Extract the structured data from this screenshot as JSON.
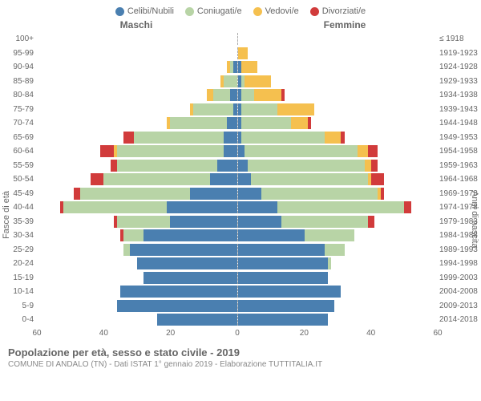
{
  "chart": {
    "type": "population-pyramid",
    "legend": [
      {
        "label": "Celibi/Nubili",
        "color": "#4a7fb0"
      },
      {
        "label": "Coniugati/e",
        "color": "#b8d4a6"
      },
      {
        "label": "Vedovi/e",
        "color": "#f5c04f"
      },
      {
        "label": "Divorziati/e",
        "color": "#d13b3b"
      }
    ],
    "header_left": "Maschi",
    "header_right": "Femmine",
    "y_left_title": "Fasce di età",
    "y_right_title": "Anni di nascita",
    "x_max": 60,
    "x_ticks": [
      60,
      40,
      20,
      0,
      20,
      40,
      60
    ],
    "colors": {
      "single": "#4a7fb0",
      "married": "#b8d4a6",
      "widowed": "#f5c04f",
      "divorced": "#d13b3b",
      "grid": "#e8e8e8",
      "text": "#666666"
    },
    "age_bands": [
      {
        "age": "100+",
        "year": "≤ 1918",
        "m": {
          "s": 0,
          "m": 0,
          "w": 0,
          "d": 0
        },
        "f": {
          "s": 0,
          "m": 0,
          "w": 0,
          "d": 0
        }
      },
      {
        "age": "95-99",
        "year": "1919-1923",
        "m": {
          "s": 0,
          "m": 0,
          "w": 0,
          "d": 0
        },
        "f": {
          "s": 0,
          "m": 0,
          "w": 3,
          "d": 0
        }
      },
      {
        "age": "90-94",
        "year": "1924-1928",
        "m": {
          "s": 1,
          "m": 1,
          "w": 1,
          "d": 0
        },
        "f": {
          "s": 1,
          "m": 0,
          "w": 5,
          "d": 0
        }
      },
      {
        "age": "85-89",
        "year": "1929-1933",
        "m": {
          "s": 0,
          "m": 4,
          "w": 1,
          "d": 0
        },
        "f": {
          "s": 1,
          "m": 1,
          "w": 8,
          "d": 0
        }
      },
      {
        "age": "80-84",
        "year": "1934-1938",
        "m": {
          "s": 2,
          "m": 5,
          "w": 2,
          "d": 0
        },
        "f": {
          "s": 1,
          "m": 4,
          "w": 8,
          "d": 1
        }
      },
      {
        "age": "75-79",
        "year": "1939-1943",
        "m": {
          "s": 1,
          "m": 12,
          "w": 1,
          "d": 0
        },
        "f": {
          "s": 1,
          "m": 11,
          "w": 11,
          "d": 0
        }
      },
      {
        "age": "70-74",
        "year": "1944-1948",
        "m": {
          "s": 3,
          "m": 17,
          "w": 1,
          "d": 0
        },
        "f": {
          "s": 1,
          "m": 15,
          "w": 5,
          "d": 1
        }
      },
      {
        "age": "65-69",
        "year": "1949-1953",
        "m": {
          "s": 4,
          "m": 27,
          "w": 0,
          "d": 3
        },
        "f": {
          "s": 1,
          "m": 25,
          "w": 5,
          "d": 1
        }
      },
      {
        "age": "60-64",
        "year": "1954-1958",
        "m": {
          "s": 4,
          "m": 32,
          "w": 1,
          "d": 4
        },
        "f": {
          "s": 2,
          "m": 34,
          "w": 3,
          "d": 3
        }
      },
      {
        "age": "55-59",
        "year": "1959-1963",
        "m": {
          "s": 6,
          "m": 30,
          "w": 0,
          "d": 2
        },
        "f": {
          "s": 3,
          "m": 35,
          "w": 2,
          "d": 2
        }
      },
      {
        "age": "50-54",
        "year": "1964-1968",
        "m": {
          "s": 8,
          "m": 32,
          "w": 0,
          "d": 4
        },
        "f": {
          "s": 4,
          "m": 35,
          "w": 1,
          "d": 4
        }
      },
      {
        "age": "45-49",
        "year": "1969-1973",
        "m": {
          "s": 14,
          "m": 33,
          "w": 0,
          "d": 2
        },
        "f": {
          "s": 7,
          "m": 35,
          "w": 1,
          "d": 1
        }
      },
      {
        "age": "40-44",
        "year": "1974-1978",
        "m": {
          "s": 21,
          "m": 31,
          "w": 0,
          "d": 1
        },
        "f": {
          "s": 12,
          "m": 38,
          "w": 0,
          "d": 2
        }
      },
      {
        "age": "35-39",
        "year": "1979-1983",
        "m": {
          "s": 20,
          "m": 16,
          "w": 0,
          "d": 1
        },
        "f": {
          "s": 13,
          "m": 26,
          "w": 0,
          "d": 2
        }
      },
      {
        "age": "30-34",
        "year": "1984-1988",
        "m": {
          "s": 28,
          "m": 6,
          "w": 0,
          "d": 1
        },
        "f": {
          "s": 20,
          "m": 15,
          "w": 0,
          "d": 0
        }
      },
      {
        "age": "25-29",
        "year": "1989-1993",
        "m": {
          "s": 32,
          "m": 2,
          "w": 0,
          "d": 0
        },
        "f": {
          "s": 26,
          "m": 6,
          "w": 0,
          "d": 0
        }
      },
      {
        "age": "20-24",
        "year": "1994-1998",
        "m": {
          "s": 30,
          "m": 0,
          "w": 0,
          "d": 0
        },
        "f": {
          "s": 27,
          "m": 1,
          "w": 0,
          "d": 0
        }
      },
      {
        "age": "15-19",
        "year": "1999-2003",
        "m": {
          "s": 28,
          "m": 0,
          "w": 0,
          "d": 0
        },
        "f": {
          "s": 27,
          "m": 0,
          "w": 0,
          "d": 0
        }
      },
      {
        "age": "10-14",
        "year": "2004-2008",
        "m": {
          "s": 35,
          "m": 0,
          "w": 0,
          "d": 0
        },
        "f": {
          "s": 31,
          "m": 0,
          "w": 0,
          "d": 0
        }
      },
      {
        "age": "5-9",
        "year": "2009-2013",
        "m": {
          "s": 36,
          "m": 0,
          "w": 0,
          "d": 0
        },
        "f": {
          "s": 29,
          "m": 0,
          "w": 0,
          "d": 0
        }
      },
      {
        "age": "0-4",
        "year": "2014-2018",
        "m": {
          "s": 24,
          "m": 0,
          "w": 0,
          "d": 0
        },
        "f": {
          "s": 27,
          "m": 0,
          "w": 0,
          "d": 0
        }
      }
    ],
    "footer_title": "Popolazione per età, sesso e stato civile - 2019",
    "footer_sub": "COMUNE DI ANDALO (TN) - Dati ISTAT 1° gennaio 2019 - Elaborazione TUTTITALIA.IT"
  }
}
